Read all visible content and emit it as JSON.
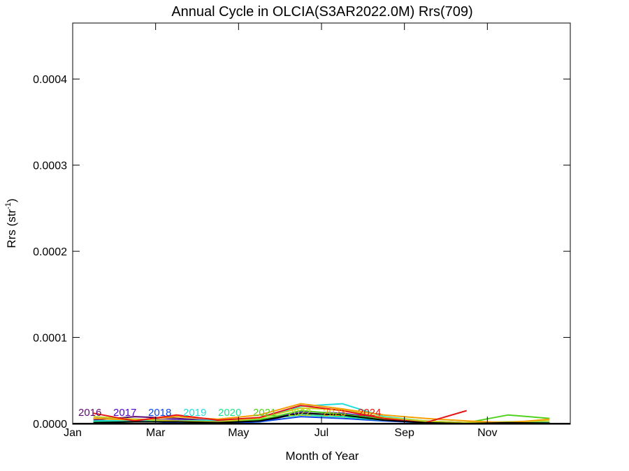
{
  "chart_data": {
    "type": "line",
    "title": "Annual Cycle in OLCIA(S3AR2022.0M) Rrs(709)",
    "xlabel": "Month of Year",
    "ylabel": "Rrs (str",
    "ylabel_sup": "-1",
    "ylabel_close": ")",
    "xlim": [
      0,
      12
    ],
    "ylim": [
      0,
      0.000465
    ],
    "x_ticks": [
      {
        "v": 0,
        "label": "Jan"
      },
      {
        "v": 2,
        "label": "Mar"
      },
      {
        "v": 4,
        "label": "May"
      },
      {
        "v": 6,
        "label": "Jul"
      },
      {
        "v": 8,
        "label": "Sep"
      },
      {
        "v": 10,
        "label": "Nov"
      }
    ],
    "y_ticks": [
      {
        "v": 0,
        "label": "0.0000"
      },
      {
        "v": 0.0001,
        "label": "0.0001"
      },
      {
        "v": 0.0002,
        "label": "0.0002"
      },
      {
        "v": 0.0003,
        "label": "0.0003"
      },
      {
        "v": 0.0004,
        "label": "0.0004"
      }
    ],
    "x_months": [
      0.5,
      1.5,
      2.5,
      3.5,
      4.5,
      5.5,
      6.5,
      7.5,
      8.5,
      9.5,
      10.5,
      11.5
    ],
    "series": [
      {
        "name": "2016",
        "color": "#5a0a6e",
        "values": [
          4e-06,
          8e-06,
          6e-06,
          3e-06,
          2e-06,
          1.2e-05,
          1e-05,
          5e-06,
          2e-06,
          1e-06,
          1e-06,
          5e-07
        ]
      },
      {
        "name": "2017",
        "color": "#4b00c8",
        "values": [
          6e-06,
          5e-06,
          4e-06,
          2e-06,
          3e-06,
          1.4e-05,
          1.2e-05,
          6e-06,
          3e-06,
          1e-06,
          1e-06,
          1e-06
        ]
      },
      {
        "name": "2018",
        "color": "#0a46e6",
        "values": [
          2e-06,
          3e-06,
          1e-06,
          0.0,
          2e-06,
          8e-06,
          6e-06,
          3e-06,
          1e-06,
          0.0,
          1e-06,
          0.0
        ]
      },
      {
        "name": "2019",
        "color": "#1edcdc",
        "values": [
          3e-06,
          4e-06,
          3e-06,
          4e-06,
          6e-06,
          2e-05,
          2.3e-05,
          8e-06,
          3e-06,
          1e-06,
          2e-06,
          1e-06
        ]
      },
      {
        "name": "2020",
        "color": "#1ee68c",
        "values": [
          2e-06,
          2e-06,
          3e-06,
          2e-06,
          5e-06,
          1e-05,
          8e-06,
          4e-06,
          2e-06,
          1e-06,
          1e-06,
          1e-06
        ]
      },
      {
        "name": "2021",
        "color": "#50d21e",
        "values": [
          1e-06,
          2e-06,
          2e-06,
          1e-06,
          4e-06,
          1.5e-05,
          1.1e-05,
          5e-06,
          2e-06,
          1e-06,
          1e-05,
          6e-06
        ]
      },
      {
        "name": "2022",
        "color": "#c8d21e",
        "values": [
          8e-06,
          5e-06,
          3e-06,
          2e-06,
          6e-06,
          1.8e-05,
          1.6e-05,
          7e-06,
          3e-06,
          1e-06,
          2e-06,
          3e-06
        ]
      },
      {
        "name": "2023",
        "color": "#f5a000",
        "values": [
          6e-06,
          4e-06,
          8e-06,
          5e-06,
          1e-05,
          2.3e-05,
          1.7e-05,
          1e-05,
          6e-06,
          3e-06,
          1e-06,
          5e-06
        ]
      },
      {
        "name": "2024",
        "color": "#e61414",
        "values": [
          1.2e-05,
          3e-06,
          1e-05,
          4e-06,
          7e-06,
          2.1e-05,
          1.5e-05,
          6e-06,
          1e-06,
          1.5e-05,
          null,
          null
        ]
      },
      {
        "name": "",
        "color": "#000000",
        "values": [
          1e-06,
          2e-06,
          2e-06,
          1e-06,
          3e-06,
          1.2e-05,
          1e-05,
          4e-06,
          1e-06,
          0.0,
          1e-06,
          5e-07
        ]
      }
    ]
  }
}
